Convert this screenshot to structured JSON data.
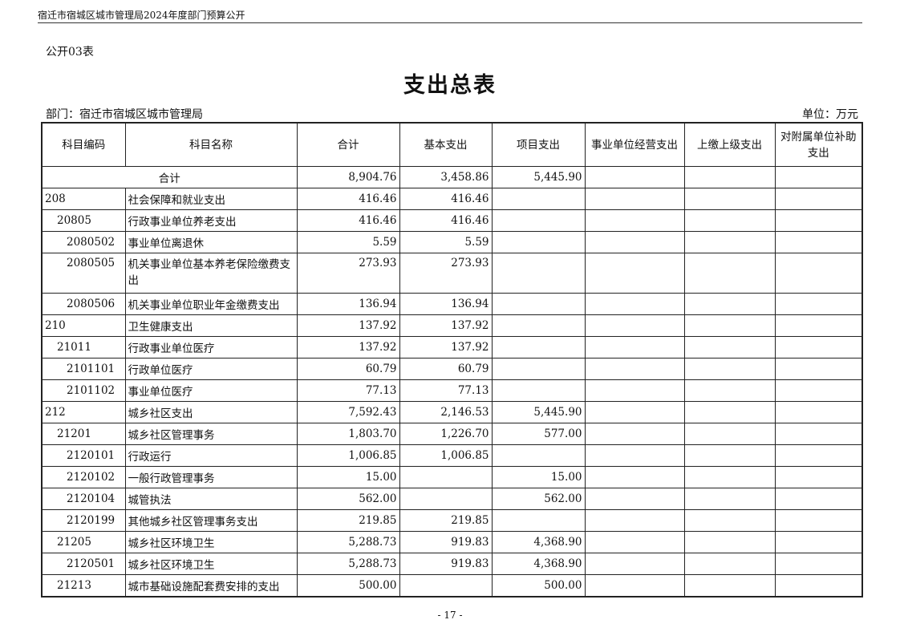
{
  "header": {
    "running_title": "宿迁市宿城区城市管理局2024年度部门预算公开",
    "table_code": "公开03表"
  },
  "title": "支出总表",
  "department": "部门：宿迁市宿城区城市管理局",
  "unit": "单位：万元",
  "columns": [
    "科目编码",
    "科目名称",
    "合计",
    "基本支出",
    "项目支出",
    "事业单位经营支出",
    "上缴上级支出",
    "对附属单位补助支出"
  ],
  "total": {
    "label": "合计",
    "total": "8,904.76",
    "basic": "3,458.86",
    "project": "5,445.90"
  },
  "rows": [
    {
      "code": "208",
      "name": "社会保障和就业支出",
      "total": "416.46",
      "basic": "416.46",
      "project": "",
      "level": 1
    },
    {
      "code": "20805",
      "name": "行政事业单位养老支出",
      "total": "416.46",
      "basic": "416.46",
      "project": "",
      "level": 2
    },
    {
      "code": "2080502",
      "name": "事业单位离退休",
      "total": "5.59",
      "basic": "5.59",
      "project": "",
      "level": 3
    },
    {
      "code": "2080505",
      "name": "机关事业单位基本养老保险缴费支出",
      "total": "273.93",
      "basic": "273.93",
      "project": "",
      "level": 3
    },
    {
      "code": "2080506",
      "name": "机关事业单位职业年金缴费支出",
      "total": "136.94",
      "basic": "136.94",
      "project": "",
      "level": 3
    },
    {
      "code": "210",
      "name": "卫生健康支出",
      "total": "137.92",
      "basic": "137.92",
      "project": "",
      "level": 1
    },
    {
      "code": "21011",
      "name": "行政事业单位医疗",
      "total": "137.92",
      "basic": "137.92",
      "project": "",
      "level": 2
    },
    {
      "code": "2101101",
      "name": "行政单位医疗",
      "total": "60.79",
      "basic": "60.79",
      "project": "",
      "level": 3
    },
    {
      "code": "2101102",
      "name": "事业单位医疗",
      "total": "77.13",
      "basic": "77.13",
      "project": "",
      "level": 3
    },
    {
      "code": "212",
      "name": "城乡社区支出",
      "total": "7,592.43",
      "basic": "2,146.53",
      "project": "5,445.90",
      "level": 1
    },
    {
      "code": "21201",
      "name": "城乡社区管理事务",
      "total": "1,803.70",
      "basic": "1,226.70",
      "project": "577.00",
      "level": 2
    },
    {
      "code": "2120101",
      "name": "行政运行",
      "total": "1,006.85",
      "basic": "1,006.85",
      "project": "",
      "level": 3
    },
    {
      "code": "2120102",
      "name": "一般行政管理事务",
      "total": "15.00",
      "basic": "",
      "project": "15.00",
      "level": 3
    },
    {
      "code": "2120104",
      "name": "城管执法",
      "total": "562.00",
      "basic": "",
      "project": "562.00",
      "level": 3
    },
    {
      "code": "2120199",
      "name": "其他城乡社区管理事务支出",
      "total": "219.85",
      "basic": "219.85",
      "project": "",
      "level": 3
    },
    {
      "code": "21205",
      "name": "城乡社区环境卫生",
      "total": "5,288.73",
      "basic": "919.83",
      "project": "4,368.90",
      "level": 2
    },
    {
      "code": "2120501",
      "name": "城乡社区环境卫生",
      "total": "5,288.73",
      "basic": "919.83",
      "project": "4,368.90",
      "level": 3
    },
    {
      "code": "21213",
      "name": "城市基础设施配套费安排的支出",
      "total": "500.00",
      "basic": "",
      "project": "500.00",
      "level": 2
    }
  ],
  "footer": "- 17 -"
}
